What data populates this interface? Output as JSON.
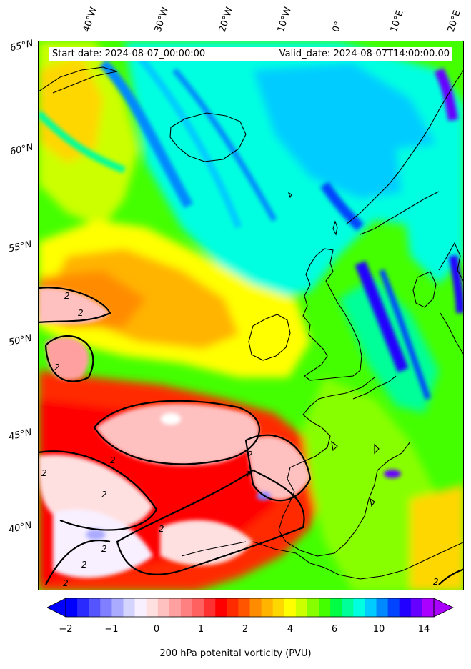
{
  "header": {
    "start_date": "Start date: 2024-08-07_00:00:00",
    "valid_date": "Valid_date: 2024-08-07T14:00:00.00"
  },
  "axes": {
    "longitude_labels": [
      "40°W",
      "30°W",
      "20°W",
      "10°W",
      "0°",
      "10°E",
      "20°E"
    ],
    "latitude_labels": [
      "65°N",
      "60°N",
      "55°N",
      "50°N",
      "45°N",
      "40°N"
    ]
  },
  "contour_label": "2",
  "colorbar": {
    "label": "200 hPa potenital vorticity (PVU)",
    "ticks": [
      "−2",
      "−1",
      "0",
      "1",
      "2",
      "4",
      "6",
      "10",
      "14"
    ],
    "colors": [
      "#0000ff",
      "#2a2aff",
      "#5555ff",
      "#7f7fff",
      "#aaaaff",
      "#d4d4ff",
      "#f8f0ff",
      "#ffe0e0",
      "#ffc0c0",
      "#ffa0a0",
      "#ff8080",
      "#ff6060",
      "#ff3030",
      "#ff0000",
      "#ff2a00",
      "#ff5500",
      "#ff8c00",
      "#ffb400",
      "#ffd700",
      "#ffff00",
      "#ccff00",
      "#88ff00",
      "#44ff00",
      "#00ff44",
      "#00ff99",
      "#00ffe0",
      "#00ccff",
      "#0088ff",
      "#0044ff",
      "#2200ff",
      "#6600ff",
      "#aa00ff"
    ]
  }
}
